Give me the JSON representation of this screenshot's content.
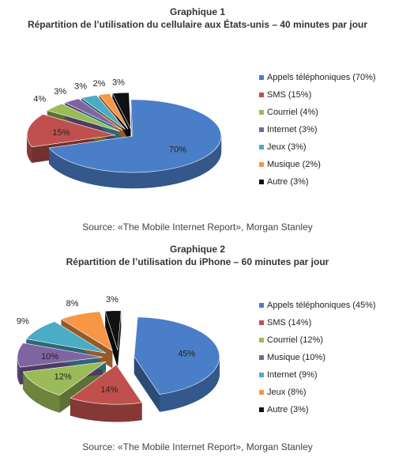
{
  "chart_data": [
    {
      "type": "pie",
      "title": "Graphique 1",
      "subtitle": "Répartition de l’utilisation du cellulaire aux États-unis – 40 minutes par jour",
      "source": "Source: «The Mobile Internet Report», Morgan Stanley",
      "legend_position": "right",
      "exploded": false,
      "slices": [
        {
          "label": "Appels téléphoniques",
          "value": 70,
          "value_label": "70%",
          "legend_label": "Appels téléphoniques (70%)",
          "color": "#4a7ec8"
        },
        {
          "label": "SMS",
          "value": 15,
          "value_label": "15%",
          "legend_label": "SMS (15%)",
          "color": "#c0504d"
        },
        {
          "label": "Courriel",
          "value": 4,
          "value_label": "4%",
          "legend_label": "Courriel (4%)",
          "color": "#9bbb59"
        },
        {
          "label": "Internet",
          "value": 3,
          "value_label": "3%",
          "legend_label": "Internet (3%)",
          "color": "#8064a2"
        },
        {
          "label": "Jeux",
          "value": 3,
          "value_label": "3%",
          "legend_label": "Jeux (3%)",
          "color": "#4bacc6"
        },
        {
          "label": "Musique",
          "value": 2,
          "value_label": "2%",
          "legend_label": "Musique (2%)",
          "color": "#f79646"
        },
        {
          "label": "Autre",
          "value": 3,
          "value_label": "3%",
          "legend_label": "Autre (3%)",
          "color": "#111111"
        }
      ]
    },
    {
      "type": "pie",
      "title": "Graphique 2",
      "subtitle": "Répartition de l’utilisation du iPhone – 60 minutes par jour",
      "source": "Source: «The Mobile Internet Report», Morgan Stanley",
      "legend_position": "right",
      "exploded": true,
      "slices": [
        {
          "label": "Appels téléphoniques",
          "value": 45,
          "value_label": "45%",
          "legend_label": "Appels téléphoniques (45%)",
          "color": "#4a7ec8"
        },
        {
          "label": "SMS",
          "value": 14,
          "value_label": "14%",
          "legend_label": "SMS (14%)",
          "color": "#c0504d"
        },
        {
          "label": "Courriel",
          "value": 12,
          "value_label": "12%",
          "legend_label": "Courriel (12%)",
          "color": "#9bbb59"
        },
        {
          "label": "Musique",
          "value": 10,
          "value_label": "10%",
          "legend_label": "Musique (10%)",
          "color": "#8064a2"
        },
        {
          "label": "Internet",
          "value": 9,
          "value_label": "9%",
          "legend_label": "Internet (9%)",
          "color": "#4bacc6"
        },
        {
          "label": "Jeux",
          "value": 8,
          "value_label": "8%",
          "legend_label": "Jeux (8%)",
          "color": "#f79646"
        },
        {
          "label": "Autre",
          "value": 3,
          "value_label": "3%",
          "legend_label": "Autre (3%)",
          "color": "#111111"
        }
      ]
    }
  ]
}
